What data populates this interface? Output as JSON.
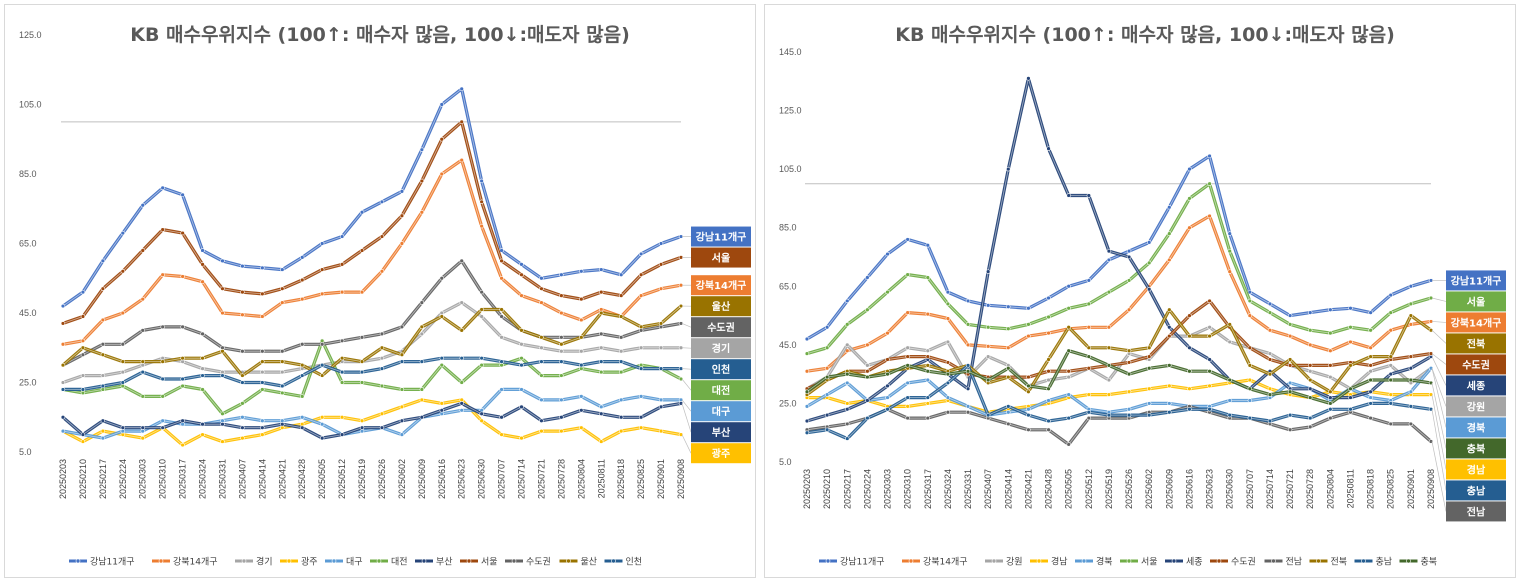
{
  "chart_data": [
    {
      "type": "line",
      "title": "KB 매수우위지수 (100↑: 매수자 많음, 100↓:매도자 많음)",
      "ylim": [
        5,
        125
      ],
      "yticks": [
        "5.0",
        "25.0",
        "45.0",
        "65.0",
        "85.0",
        "105.0",
        "125.0"
      ],
      "reference_line": 100,
      "categories": [
        "20250203",
        "20250210",
        "20250217",
        "20250224",
        "20250303",
        "20250310",
        "20250317",
        "20250324",
        "20250331",
        "20250407",
        "20250414",
        "20250421",
        "20250428",
        "20250505",
        "20250512",
        "20250519",
        "20250526",
        "20250602",
        "20250609",
        "20250616",
        "20250623",
        "20250630",
        "20250707",
        "20250714",
        "20250721",
        "20250728",
        "20250804",
        "20250811",
        "20250818",
        "20250825",
        "20250901",
        "20250908"
      ],
      "series": [
        {
          "name": "강남11개구",
          "color": "#4472C4",
          "tag": "강남11개구",
          "values": [
            47,
            51,
            60,
            68,
            76,
            81,
            79,
            63,
            60,
            58.5,
            58,
            57.5,
            61,
            65,
            67,
            74,
            77,
            80,
            92,
            105,
            109.5,
            83,
            63,
            59,
            55,
            56,
            57,
            57.5,
            56,
            62,
            65,
            67
          ]
        },
        {
          "name": "강북14개구",
          "color": "#ED7D31",
          "tag": "강북14개구",
          "values": [
            36,
            37,
            43,
            45,
            49,
            56,
            55.5,
            54,
            45,
            44.5,
            44,
            48,
            49,
            50.5,
            51,
            51,
            57,
            65,
            74,
            85,
            89,
            70,
            55,
            50,
            48,
            45,
            43,
            46,
            44,
            50,
            52,
            53
          ]
        },
        {
          "name": "경기",
          "color": "#A5A5A5",
          "tag": "경기",
          "values": [
            25,
            27,
            27,
            28,
            30,
            32,
            31,
            29,
            28,
            28,
            28,
            28,
            29,
            30,
            31,
            31,
            32,
            34,
            39,
            45,
            48,
            44,
            38,
            36,
            35,
            34,
            34,
            35,
            34,
            35,
            35,
            35
          ]
        },
        {
          "name": "광주",
          "color": "#FFC000",
          "tag": "광주",
          "values": [
            11,
            8,
            11,
            10,
            9,
            12,
            7,
            10,
            8,
            9,
            10,
            12,
            13,
            15,
            15,
            14,
            16,
            18,
            20,
            19,
            20,
            14,
            10,
            9,
            11,
            11,
            12,
            8,
            11,
            12,
            11,
            10
          ]
        },
        {
          "name": "대구",
          "color": "#5B9BD5",
          "tag": "대구",
          "values": [
            11,
            10,
            9,
            11,
            11,
            14,
            13,
            13,
            14,
            15,
            14,
            14,
            15,
            13,
            10,
            11,
            12,
            10,
            15,
            16,
            17,
            17,
            23,
            23,
            20,
            20,
            21,
            18,
            20,
            21,
            20,
            20
          ]
        },
        {
          "name": "대전",
          "color": "#70AD47",
          "tag": "대전",
          "values": [
            23,
            22,
            23,
            24,
            21,
            21,
            24,
            23,
            16,
            19,
            23,
            22,
            21,
            37,
            25,
            25,
            24,
            23,
            23,
            30,
            25,
            30,
            30,
            32,
            27,
            27,
            29,
            28,
            28,
            30,
            29,
            26
          ]
        },
        {
          "name": "부산",
          "color": "#264478",
          "tag": "부산",
          "values": [
            15,
            10,
            14,
            12,
            12,
            12,
            14,
            13,
            13,
            12,
            12,
            13,
            12,
            9,
            10,
            12,
            12,
            14,
            15,
            17,
            19,
            16,
            15,
            18,
            14,
            15,
            17,
            16,
            15,
            15,
            18,
            19
          ]
        },
        {
          "name": "서울",
          "color": "#9E480E",
          "tag": "서울",
          "values": [
            42,
            44,
            52,
            57,
            63,
            69,
            68,
            59,
            52,
            51,
            50.5,
            52,
            54.5,
            57.5,
            59,
            63,
            67,
            73,
            83,
            95,
            100,
            77,
            60,
            56,
            52,
            50,
            49,
            51,
            50,
            56,
            59,
            61
          ]
        },
        {
          "name": "수도권",
          "color": "#636363",
          "tag": "수도권",
          "values": [
            30,
            33,
            36,
            36,
            40,
            41,
            41,
            39,
            35,
            34,
            34,
            34,
            36,
            36,
            37,
            38,
            39,
            41,
            48,
            55,
            60,
            51,
            44,
            40,
            38,
            38,
            38,
            39,
            38,
            40,
            41,
            42
          ]
        },
        {
          "name": "울산",
          "color": "#997300",
          "tag": "울산",
          "values": [
            30,
            35,
            33,
            31,
            31,
            31,
            32,
            32,
            34,
            27,
            31,
            31,
            30,
            27,
            32,
            31,
            35,
            33,
            41,
            44,
            40,
            46,
            46,
            40,
            38,
            36,
            38,
            45,
            44,
            41,
            42,
            47
          ]
        },
        {
          "name": "인천",
          "color": "#255E91",
          "tag": "인천",
          "values": [
            23,
            23,
            24,
            25,
            28,
            26,
            26,
            27,
            27,
            25,
            25,
            24,
            27,
            30,
            28,
            28,
            29,
            31,
            31,
            32,
            32,
            32,
            31,
            30,
            31,
            31,
            30,
            31,
            31,
            29,
            29,
            29
          ]
        }
      ]
    },
    {
      "type": "line",
      "title": "KB 매수우위지수 (100↑: 매수자 많음, 100↓:매도자 많음)",
      "ylim": [
        5,
        145
      ],
      "yticks": [
        "5.0",
        "25.0",
        "45.0",
        "65.0",
        "85.0",
        "105.0",
        "125.0",
        "145.0"
      ],
      "reference_line": 100,
      "categories": [
        "20250203",
        "20250210",
        "20250217",
        "20250224",
        "20250303",
        "20250310",
        "20250317",
        "20250324",
        "20250331",
        "20250407",
        "20250414",
        "20250421",
        "20250428",
        "20250505",
        "20250512",
        "20250519",
        "20250526",
        "20250602",
        "20250609",
        "20250616",
        "20250623",
        "20250630",
        "20250707",
        "20250714",
        "20250721",
        "20250728",
        "20250804",
        "20250811",
        "20250818",
        "20250825",
        "20250901",
        "20250908"
      ],
      "series": [
        {
          "name": "강남11개구",
          "color": "#4472C4",
          "tag": "강남11개구",
          "values": [
            47,
            51,
            60,
            68,
            76,
            81,
            79,
            63,
            60,
            58.5,
            58,
            57.5,
            61,
            65,
            67,
            74,
            77,
            80,
            92,
            105,
            109.5,
            83,
            63,
            59,
            55,
            56,
            57,
            57.5,
            56,
            62,
            65,
            67
          ]
        },
        {
          "name": "강북14개구",
          "color": "#ED7D31",
          "tag": "강북14개구",
          "values": [
            36,
            37,
            43,
            45,
            49,
            56,
            55.5,
            54,
            45,
            44.5,
            44,
            48,
            49,
            50.5,
            51,
            51,
            57,
            65,
            74,
            85,
            89,
            70,
            55,
            50,
            48,
            45,
            43,
            46,
            44,
            50,
            52,
            53
          ]
        },
        {
          "name": "강원",
          "color": "#A5A5A5",
          "tag": "강원",
          "values": [
            30,
            34,
            45,
            38,
            40,
            44,
            43,
            46,
            34,
            41,
            38,
            31,
            33,
            34,
            37,
            33,
            42,
            40,
            48,
            48,
            51,
            46,
            44,
            42,
            38,
            36,
            34,
            30,
            36,
            38,
            32,
            37
          ]
        },
        {
          "name": "경남",
          "color": "#FFC000",
          "tag": "경남",
          "values": [
            27,
            27,
            25,
            26,
            24,
            24,
            25,
            26,
            24,
            22,
            23,
            24,
            25,
            27,
            28,
            28,
            29,
            30,
            31,
            30,
            31,
            32,
            33,
            30,
            28,
            27,
            29,
            28,
            29,
            28,
            28,
            28
          ]
        },
        {
          "name": "경북",
          "color": "#5B9BD5",
          "tag": "경북",
          "values": [
            24,
            28,
            32,
            26,
            27,
            32,
            33,
            27,
            24,
            21,
            22,
            23,
            26,
            28,
            23,
            22,
            23,
            25,
            25,
            24,
            24,
            26,
            26,
            27,
            32,
            30,
            26,
            30,
            27,
            26,
            29,
            37
          ]
        },
        {
          "name": "서울",
          "color": "#70AD47",
          "tag": "서울",
          "values": [
            42,
            44,
            52,
            57,
            63,
            69,
            68,
            59,
            52,
            51,
            50.5,
            52,
            54.5,
            57.5,
            59,
            63,
            67,
            73,
            83,
            95,
            100,
            77,
            60,
            56,
            52,
            50,
            49,
            51,
            50,
            56,
            59,
            61
          ]
        },
        {
          "name": "세종",
          "color": "#264478",
          "tag": "세종",
          "values": [
            19,
            21,
            23,
            26,
            31,
            37,
            40,
            35,
            30,
            70,
            105,
            136,
            112,
            96,
            96,
            77,
            75,
            64,
            51,
            44,
            40,
            33,
            30,
            36,
            30,
            30,
            27,
            27,
            29,
            35,
            37,
            41
          ]
        },
        {
          "name": "수도권",
          "color": "#9E480E",
          "tag": "수도권",
          "values": [
            30,
            33,
            36,
            36,
            40,
            41,
            41,
            39,
            35,
            34,
            34,
            34,
            36,
            36,
            37,
            38,
            39,
            41,
            48,
            55,
            60,
            51,
            44,
            40,
            38,
            38,
            38,
            39,
            38,
            40,
            41,
            42
          ]
        },
        {
          "name": "전남",
          "color": "#636363",
          "tag": "전남",
          "values": [
            16,
            17,
            18,
            20,
            23,
            20,
            20,
            22,
            22,
            20,
            18,
            16,
            16,
            11,
            20,
            20,
            20,
            22,
            22,
            24,
            22,
            20,
            20,
            18,
            16,
            17,
            20,
            22,
            20,
            18,
            18,
            12
          ]
        },
        {
          "name": "전북",
          "color": "#997300",
          "tag": "전북",
          "values": [
            28,
            33,
            36,
            34,
            36,
            37,
            38,
            36,
            38,
            32,
            34,
            29,
            40,
            51,
            44,
            44,
            43,
            44,
            57,
            48,
            48,
            52,
            38,
            35,
            40,
            33,
            29,
            38,
            41,
            41,
            55,
            50
          ]
        },
        {
          "name": "충남",
          "color": "#255E91",
          "tag": "충남",
          "values": [
            15,
            16,
            13,
            20,
            23,
            27,
            27,
            32,
            38,
            21,
            24,
            21,
            19,
            20,
            22,
            21,
            21,
            21,
            22,
            23,
            23,
            21,
            20,
            19,
            21,
            20,
            23,
            23,
            25,
            25,
            24,
            23
          ]
        },
        {
          "name": "충북",
          "color": "#43682B",
          "tag": "충북",
          "values": [
            29,
            34,
            35,
            34,
            35,
            38,
            36,
            35,
            36,
            33,
            37,
            31,
            30,
            43,
            41,
            38,
            35,
            37,
            38,
            36,
            36,
            33,
            30,
            28,
            29,
            27,
            25,
            30,
            33,
            33,
            33,
            32
          ]
        }
      ]
    }
  ]
}
